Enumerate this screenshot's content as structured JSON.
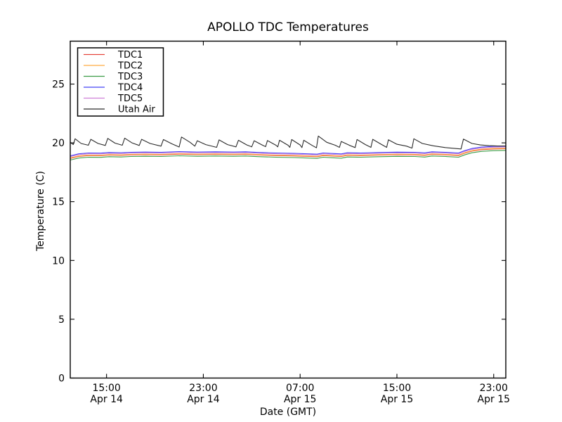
{
  "figure": {
    "background": "#ffffff",
    "axes_color": "#000000"
  },
  "chart_data": {
    "type": "line",
    "title": "APOLLO TDC Temperatures",
    "xlabel": "Date (GMT)",
    "ylabel": "Temperature (C)",
    "x_unit": "hours since Apr 14 12:00 GMT",
    "x_range": [
      0,
      36
    ],
    "ylim": [
      0,
      28.65
    ],
    "y_ticks": [
      0,
      5,
      10,
      15,
      20,
      25
    ],
    "x_ticks": [
      {
        "t": 3,
        "time": "15:00",
        "date": "Apr 14"
      },
      {
        "t": 11,
        "time": "23:00",
        "date": "Apr 14"
      },
      {
        "t": 19,
        "time": "07:00",
        "date": "Apr 15"
      },
      {
        "t": 27,
        "time": "15:00",
        "date": "Apr 15"
      },
      {
        "t": 35,
        "time": "23:00",
        "date": "Apr 15"
      }
    ],
    "grid": false,
    "tick_direction": "in",
    "legend": {
      "position": "upper-left",
      "background": "#ffffff",
      "border_color": "#000000"
    },
    "series": [
      {
        "name": "TDC1",
        "color": "#e6453c",
        "points": [
          [
            0,
            18.68
          ],
          [
            0.7,
            18.85
          ],
          [
            1.5,
            18.92
          ],
          [
            2.5,
            18.91
          ],
          [
            3.2,
            18.96
          ],
          [
            4.2,
            18.94
          ],
          [
            5.0,
            18.98
          ],
          [
            6.2,
            19.0
          ],
          [
            7.5,
            18.98
          ],
          [
            9.0,
            19.04
          ],
          [
            10.5,
            19.0
          ],
          [
            12.0,
            19.02
          ],
          [
            13.5,
            19.0
          ],
          [
            14.5,
            19.02
          ],
          [
            15.5,
            18.97
          ],
          [
            17.0,
            18.92
          ],
          [
            18.5,
            18.89
          ],
          [
            19.6,
            18.85
          ],
          [
            20.4,
            18.82
          ],
          [
            20.9,
            18.92
          ],
          [
            21.8,
            18.87
          ],
          [
            22.4,
            18.84
          ],
          [
            22.9,
            18.94
          ],
          [
            24.0,
            18.92
          ],
          [
            25.5,
            18.96
          ],
          [
            27.0,
            18.99
          ],
          [
            28.5,
            18.98
          ],
          [
            29.3,
            18.93
          ],
          [
            29.9,
            19.02
          ],
          [
            31.0,
            18.98
          ],
          [
            32.1,
            18.92
          ],
          [
            32.6,
            19.12
          ],
          [
            33.2,
            19.3
          ],
          [
            34.0,
            19.42
          ],
          [
            35.0,
            19.48
          ],
          [
            36.0,
            19.5
          ]
        ]
      },
      {
        "name": "TDC2",
        "color": "#ffac42",
        "points": [
          [
            0,
            18.72
          ],
          [
            0.7,
            18.89
          ],
          [
            1.5,
            18.96
          ],
          [
            2.5,
            18.95
          ],
          [
            3.2,
            19.0
          ],
          [
            4.2,
            18.98
          ],
          [
            5.0,
            19.02
          ],
          [
            6.2,
            19.04
          ],
          [
            7.5,
            19.02
          ],
          [
            9.0,
            19.08
          ],
          [
            10.5,
            19.04
          ],
          [
            12.0,
            19.06
          ],
          [
            13.5,
            19.04
          ],
          [
            14.5,
            19.06
          ],
          [
            15.5,
            19.01
          ],
          [
            17.0,
            18.96
          ],
          [
            18.5,
            18.93
          ],
          [
            19.6,
            18.89
          ],
          [
            20.4,
            18.86
          ],
          [
            20.9,
            18.96
          ],
          [
            21.8,
            18.91
          ],
          [
            22.4,
            18.88
          ],
          [
            22.9,
            18.98
          ],
          [
            24.0,
            18.96
          ],
          [
            25.5,
            19.0
          ],
          [
            27.0,
            19.03
          ],
          [
            28.5,
            19.02
          ],
          [
            29.3,
            18.97
          ],
          [
            29.9,
            19.06
          ],
          [
            31.0,
            19.02
          ],
          [
            32.1,
            18.96
          ],
          [
            32.6,
            19.16
          ],
          [
            33.2,
            19.34
          ],
          [
            34.0,
            19.46
          ],
          [
            35.0,
            19.52
          ],
          [
            36.0,
            19.54
          ]
        ]
      },
      {
        "name": "TDC3",
        "color": "#3b9c46",
        "points": [
          [
            0,
            18.54
          ],
          [
            0.7,
            18.71
          ],
          [
            1.5,
            18.78
          ],
          [
            2.5,
            18.77
          ],
          [
            3.2,
            18.82
          ],
          [
            4.2,
            18.8
          ],
          [
            5.0,
            18.84
          ],
          [
            6.2,
            18.86
          ],
          [
            7.5,
            18.84
          ],
          [
            9.0,
            18.9
          ],
          [
            10.5,
            18.86
          ],
          [
            12.0,
            18.88
          ],
          [
            13.5,
            18.86
          ],
          [
            14.5,
            18.88
          ],
          [
            15.5,
            18.83
          ],
          [
            17.0,
            18.78
          ],
          [
            18.5,
            18.75
          ],
          [
            19.6,
            18.71
          ],
          [
            20.4,
            18.68
          ],
          [
            20.9,
            18.78
          ],
          [
            21.8,
            18.73
          ],
          [
            22.4,
            18.7
          ],
          [
            22.9,
            18.8
          ],
          [
            24.0,
            18.78
          ],
          [
            25.5,
            18.82
          ],
          [
            27.0,
            18.85
          ],
          [
            28.5,
            18.84
          ],
          [
            29.3,
            18.79
          ],
          [
            29.9,
            18.88
          ],
          [
            31.0,
            18.84
          ],
          [
            32.1,
            18.78
          ],
          [
            32.6,
            18.98
          ],
          [
            33.2,
            19.16
          ],
          [
            34.0,
            19.28
          ],
          [
            35.0,
            19.34
          ],
          [
            36.0,
            19.36
          ]
        ]
      },
      {
        "name": "TDC4",
        "color": "#4343f5",
        "points": [
          [
            0,
            18.9
          ],
          [
            0.7,
            19.07
          ],
          [
            1.5,
            19.14
          ],
          [
            2.5,
            19.13
          ],
          [
            3.2,
            19.18
          ],
          [
            4.2,
            19.16
          ],
          [
            5.0,
            19.2
          ],
          [
            6.2,
            19.22
          ],
          [
            7.5,
            19.2
          ],
          [
            9.0,
            19.26
          ],
          [
            10.5,
            19.22
          ],
          [
            12.0,
            19.24
          ],
          [
            13.5,
            19.22
          ],
          [
            14.5,
            19.24
          ],
          [
            15.5,
            19.19
          ],
          [
            17.0,
            19.14
          ],
          [
            18.5,
            19.11
          ],
          [
            19.6,
            19.07
          ],
          [
            20.4,
            19.04
          ],
          [
            20.9,
            19.14
          ],
          [
            21.8,
            19.09
          ],
          [
            22.4,
            19.06
          ],
          [
            22.9,
            19.16
          ],
          [
            24.0,
            19.14
          ],
          [
            25.5,
            19.18
          ],
          [
            27.0,
            19.21
          ],
          [
            28.5,
            19.2
          ],
          [
            29.3,
            19.15
          ],
          [
            29.9,
            19.24
          ],
          [
            31.0,
            19.2
          ],
          [
            32.1,
            19.14
          ],
          [
            32.6,
            19.34
          ],
          [
            33.2,
            19.52
          ],
          [
            34.0,
            19.64
          ],
          [
            35.0,
            19.7
          ],
          [
            36.0,
            19.72
          ]
        ]
      },
      {
        "name": "TDC5",
        "color": "#cf7fd9",
        "points": [
          [
            0,
            18.83
          ],
          [
            0.7,
            19.0
          ],
          [
            1.5,
            19.07
          ],
          [
            2.5,
            19.06
          ],
          [
            3.2,
            19.11
          ],
          [
            4.2,
            19.09
          ],
          [
            5.0,
            19.13
          ],
          [
            6.2,
            19.15
          ],
          [
            7.5,
            19.13
          ],
          [
            9.0,
            19.19
          ],
          [
            10.5,
            19.15
          ],
          [
            12.0,
            19.17
          ],
          [
            13.5,
            19.15
          ],
          [
            14.5,
            19.17
          ],
          [
            15.5,
            19.12
          ],
          [
            17.0,
            19.07
          ],
          [
            18.5,
            19.04
          ],
          [
            19.6,
            19.0
          ],
          [
            20.4,
            18.97
          ],
          [
            20.9,
            19.07
          ],
          [
            21.8,
            19.02
          ],
          [
            22.4,
            18.99
          ],
          [
            22.9,
            19.09
          ],
          [
            24.0,
            19.07
          ],
          [
            25.5,
            19.11
          ],
          [
            27.0,
            19.14
          ],
          [
            28.5,
            19.13
          ],
          [
            29.3,
            19.08
          ],
          [
            29.9,
            19.17
          ],
          [
            31.0,
            19.13
          ],
          [
            32.1,
            19.07
          ],
          [
            32.6,
            19.27
          ],
          [
            33.2,
            19.45
          ],
          [
            34.0,
            19.57
          ],
          [
            35.0,
            19.63
          ],
          [
            36.0,
            19.65
          ]
        ]
      },
      {
        "name": "Utah Air",
        "color": "#2b2b2b",
        "points": [
          [
            0,
            20.05
          ],
          [
            0.25,
            19.85
          ],
          [
            0.4,
            20.35
          ],
          [
            0.9,
            19.95
          ],
          [
            1.5,
            19.8
          ],
          [
            1.7,
            20.3
          ],
          [
            2.3,
            19.95
          ],
          [
            2.9,
            19.78
          ],
          [
            3.1,
            20.38
          ],
          [
            3.7,
            19.98
          ],
          [
            4.3,
            19.8
          ],
          [
            4.5,
            20.4
          ],
          [
            5.1,
            20.0
          ],
          [
            5.7,
            19.78
          ],
          [
            5.9,
            20.3
          ],
          [
            6.6,
            19.95
          ],
          [
            7.5,
            19.72
          ],
          [
            7.7,
            20.28
          ],
          [
            8.4,
            19.92
          ],
          [
            9.0,
            19.65
          ],
          [
            9.2,
            20.5
          ],
          [
            9.9,
            20.05
          ],
          [
            10.3,
            19.72
          ],
          [
            10.5,
            20.18
          ],
          [
            11.2,
            19.85
          ],
          [
            12.1,
            19.62
          ],
          [
            12.3,
            20.25
          ],
          [
            13.0,
            19.85
          ],
          [
            13.7,
            19.66
          ],
          [
            13.9,
            20.22
          ],
          [
            14.6,
            19.82
          ],
          [
            15.0,
            19.66
          ],
          [
            15.2,
            20.18
          ],
          [
            15.9,
            19.8
          ],
          [
            16.15,
            19.68
          ],
          [
            16.3,
            20.2
          ],
          [
            17.0,
            19.8
          ],
          [
            17.15,
            19.66
          ],
          [
            17.3,
            20.22
          ],
          [
            18.0,
            19.8
          ],
          [
            18.15,
            19.62
          ],
          [
            18.3,
            20.28
          ],
          [
            19.0,
            19.82
          ],
          [
            19.15,
            19.6
          ],
          [
            19.3,
            20.22
          ],
          [
            20.0,
            19.78
          ],
          [
            20.35,
            19.58
          ],
          [
            20.5,
            20.58
          ],
          [
            21.2,
            20.05
          ],
          [
            21.9,
            19.8
          ],
          [
            22.25,
            19.62
          ],
          [
            22.4,
            20.12
          ],
          [
            23.1,
            19.78
          ],
          [
            23.55,
            19.6
          ],
          [
            23.7,
            20.28
          ],
          [
            24.4,
            19.85
          ],
          [
            24.85,
            19.62
          ],
          [
            25.0,
            20.3
          ],
          [
            25.7,
            19.88
          ],
          [
            26.15,
            19.62
          ],
          [
            26.3,
            20.26
          ],
          [
            27.0,
            19.88
          ],
          [
            27.8,
            19.72
          ],
          [
            28.25,
            19.55
          ],
          [
            28.4,
            20.35
          ],
          [
            29.1,
            19.95
          ],
          [
            30.0,
            19.75
          ],
          [
            31.0,
            19.6
          ],
          [
            32.3,
            19.48
          ],
          [
            32.5,
            20.32
          ],
          [
            33.2,
            19.95
          ],
          [
            33.9,
            19.82
          ],
          [
            34.6,
            19.76
          ],
          [
            35.3,
            19.73
          ],
          [
            36.0,
            19.73
          ]
        ]
      }
    ]
  }
}
